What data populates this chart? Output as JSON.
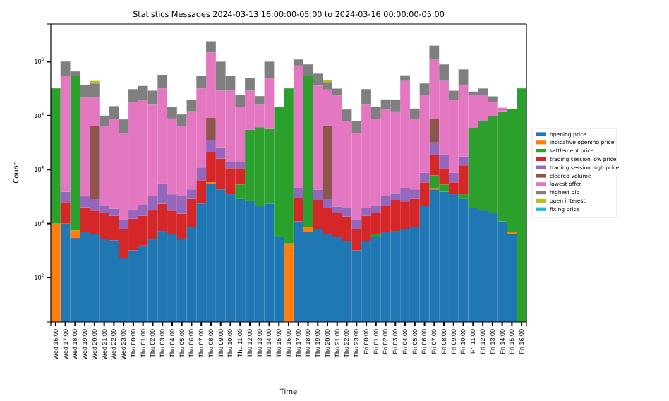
{
  "chart_data": {
    "type": "bar",
    "stacked": true,
    "log": true,
    "title": "Statistics Messages 2024-03-13 16:00:00-05:00 to 2024-03-16 00:00:00-05:00",
    "xlabel": "Time",
    "ylabel": "Count",
    "legend": "right",
    "grid": false,
    "categories": [
      "Wed 16:00",
      "Wed 17:00",
      "Wed 18:00",
      "Wed 19:00",
      "Wed 20:00",
      "Wed 21:00",
      "Wed 22:00",
      "Wed 23:00",
      "Thu 00:00",
      "Thu 01:00",
      "Thu 02:00",
      "Thu 03:00",
      "Thu 04:00",
      "Thu 05:00",
      "Thu 06:00",
      "Thu 07:00",
      "Thu 08:00",
      "Thu 09:00",
      "Thu 10:00",
      "Thu 11:00",
      "Thu 12:00",
      "Thu 13:00",
      "Thu 14:00",
      "Thu 15:00",
      "Thu 16:00",
      "Thu 17:00",
      "Thu 18:00",
      "Thu 19:00",
      "Thu 20:00",
      "Thu 21:00",
      "Thu 22:00",
      "Thu 23:00",
      "Fri 00:00",
      "Fri 01:00",
      "Fri 02:00",
      "Fri 03:00",
      "Fri 04:00",
      "Fri 05:00",
      "Fri 06:00",
      "Fri 07:00",
      "Fri 08:00",
      "Fri 09:00",
      "Fri 10:00",
      "Fri 11:00",
      "Fri 12:00",
      "Fri 13:00",
      "Fri 14:00",
      "Fri 15:00",
      "Fri 16:00"
    ],
    "ylim": [
      15,
      5000000
    ],
    "yticks": [
      {
        "value": 100,
        "label": "10$^{2}$"
      },
      {
        "value": 1000,
        "label": "10$^{3}$"
      },
      {
        "value": 10000,
        "label": "10$^{4}$"
      },
      {
        "value": 100000,
        "label": "10$^{5}$"
      },
      {
        "value": 1000000,
        "label": "10$^{6}$"
      }
    ],
    "series": [
      {
        "name": "opening price",
        "color": "#1f77b4",
        "values": [
          null,
          1000,
          540,
          700,
          640,
          520,
          490,
          230,
          320,
          390,
          520,
          730,
          640,
          520,
          860,
          2350,
          5500,
          4300,
          3500,
          2850,
          2600,
          2100,
          2350,
          575,
          null,
          1100,
          700,
          780,
          640,
          575,
          470,
          320,
          470,
          575,
          700,
          730,
          780,
          860,
          2100,
          4300,
          3900,
          3500,
          2850,
          1930,
          1750,
          1580,
          1100,
          640,
          null
        ]
      },
      {
        "name": "indicative opening price",
        "color": "#ff7f0e",
        "values": [
          1000,
          null,
          210,
          null,
          null,
          null,
          null,
          null,
          null,
          null,
          null,
          null,
          null,
          null,
          null,
          null,
          300,
          null,
          null,
          null,
          null,
          null,
          null,
          null,
          430,
          null,
          160,
          null,
          null,
          null,
          null,
          null,
          null,
          null,
          null,
          null,
          null,
          null,
          null,
          300,
          null,
          null,
          null,
          null,
          null,
          null,
          null,
          60,
          null
        ]
      },
      {
        "name": "settlement price",
        "color": "#2ca02c",
        "values": [
          320000,
          null,
          540000,
          null,
          null,
          null,
          null,
          null,
          null,
          null,
          null,
          null,
          null,
          null,
          null,
          null,
          null,
          null,
          null,
          2450,
          52000,
          59000,
          54000,
          144000,
          320000,
          null,
          540000,
          null,
          null,
          null,
          null,
          null,
          null,
          65,
          null,
          null,
          null,
          null,
          null,
          3200,
          1400,
          null,
          650,
          57000,
          77000,
          96000,
          119000,
          130000,
          320000
        ]
      },
      {
        "name": "trading session low price",
        "color": "#d62728",
        "values": [
          null,
          1500,
          null,
          1300,
          1100,
          1060,
          900,
          550,
          910,
          1000,
          1230,
          1600,
          1100,
          1000,
          2000,
          4000,
          15000,
          11700,
          7100,
          5300,
          null,
          null,
          null,
          null,
          null,
          1900,
          null,
          1900,
          1300,
          1000,
          880,
          460,
          930,
          940,
          1400,
          2000,
          1800,
          2000,
          3700,
          11000,
          5300,
          2300,
          8500,
          null,
          null,
          null,
          null,
          null,
          null
        ]
      },
      {
        "name": "trading session high price",
        "color": "#9467bd",
        "values": [
          null,
          1400,
          null,
          1200,
          1100,
          520,
          500,
          380,
          520,
          800,
          1450,
          3200,
          1750,
          1700,
          1450,
          4600,
          14000,
          10000,
          3400,
          3400,
          null,
          null,
          null,
          null,
          null,
          1500,
          null,
          1600,
          900,
          500,
          580,
          380,
          530,
          520,
          1100,
          850,
          1900,
          1450,
          2900,
          13000,
          8400,
          2900,
          5600,
          null,
          null,
          null,
          null,
          null,
          null
        ]
      },
      {
        "name": "cleared volume",
        "color": "#8c564b",
        "values": [
          null,
          null,
          null,
          null,
          62000,
          null,
          null,
          null,
          null,
          null,
          null,
          null,
          null,
          null,
          null,
          null,
          56000,
          null,
          null,
          null,
          null,
          null,
          null,
          null,
          null,
          null,
          null,
          null,
          62000,
          null,
          null,
          null,
          null,
          null,
          null,
          null,
          null,
          null,
          null,
          56000,
          null,
          null,
          null,
          null,
          null,
          null,
          null,
          null,
          null
        ]
      },
      {
        "name": "lowest offer",
        "color": "#e377c2",
        "values": [
          null,
          540000,
          null,
          212000,
          150000,
          63000,
          86000,
          47000,
          178000,
          193000,
          157000,
          315000,
          85000,
          62000,
          116000,
          309000,
          1400000,
          264000,
          276000,
          131000,
          235000,
          99000,
          434000,
          null,
          null,
          845000,
          null,
          356000,
          240000,
          235000,
          77000,
          47000,
          158000,
          86000,
          127000,
          116000,
          435000,
          84000,
          231000,
          1000000,
          421000,
          186000,
          342000,
          180000,
          160000,
          80000,
          20000,
          null,
          null
        ]
      },
      {
        "name": "highest bid",
        "color": "#7f7f7f",
        "values": [
          null,
          460000,
          120000,
          155000,
          180000,
          35000,
          62000,
          37000,
          130000,
          160000,
          130000,
          250000,
          57000,
          40000,
          75000,
          220000,
          900000,
          710000,
          250000,
          95000,
          210000,
          70000,
          510000,
          null,
          null,
          250000,
          350000,
          240000,
          115000,
          80000,
          51000,
          31000,
          150000,
          57000,
          70000,
          80000,
          120000,
          47000,
          155000,
          900000,
          450000,
          95000,
          360000,
          40000,
          80000,
          50000,
          null,
          null,
          null
        ]
      },
      {
        "name": "open interest",
        "color": "#bcbd22",
        "values": [
          null,
          null,
          null,
          null,
          45000,
          null,
          null,
          null,
          null,
          null,
          null,
          null,
          null,
          null,
          null,
          null,
          null,
          null,
          null,
          null,
          null,
          null,
          null,
          null,
          null,
          null,
          null,
          null,
          40000,
          null,
          null,
          null,
          null,
          null,
          null,
          null,
          null,
          null,
          null,
          null,
          null,
          null,
          null,
          null,
          null,
          null,
          null,
          null,
          null
        ]
      },
      {
        "name": "fixing price",
        "color": "#17becf",
        "values": [
          null,
          null,
          null,
          null,
          null,
          null,
          null,
          null,
          null,
          null,
          null,
          null,
          null,
          null,
          null,
          null,
          null,
          null,
          null,
          null,
          null,
          null,
          null,
          null,
          null,
          null,
          null,
          null,
          null,
          null,
          null,
          null,
          null,
          null,
          null,
          null,
          null,
          null,
          null,
          null,
          null,
          null,
          null,
          null,
          null,
          null,
          null,
          null,
          null
        ]
      }
    ]
  }
}
